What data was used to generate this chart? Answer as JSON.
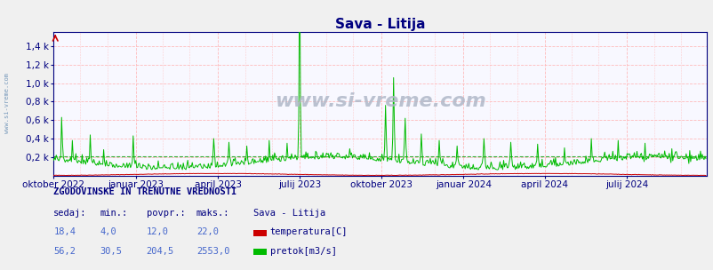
{
  "title": "Sava - Litija",
  "title_color": "#000080",
  "title_fontsize": 11,
  "background_color": "#f0f0f0",
  "plot_bg_color": "#f8f8ff",
  "watermark": "www.si-vreme.com",
  "watermark_color": "#bbbbbb",
  "grid_color": "#ffbbbb",
  "temp_color": "#cc0000",
  "flow_color": "#00bb00",
  "flow_avg_line_color": "#009900",
  "temp_avg_line_color": "#cc0000",
  "axis_color": "#000080",
  "tick_color": "#000080",
  "n_points": 730,
  "ylim": [
    0,
    1550
  ],
  "yticks": [
    200,
    400,
    600,
    800,
    1000,
    1200,
    1400
  ],
  "ytick_labels": [
    "0,2 k",
    "0,4 k",
    "0,6 k",
    "0,8 k",
    "1,0 k",
    "1,2 k",
    "1,4 k"
  ],
  "x_tick_positions": [
    0,
    92,
    184,
    275,
    366,
    458,
    549,
    641
  ],
  "x_tick_labels": [
    "oktober 2022",
    "januar 2023",
    "april 2023",
    "julij 2023",
    "oktober 2023",
    "januar 2024",
    "april 2024",
    "julij 2024"
  ],
  "stats_title": "ZGODOVINSKE IN TRENUTNE VREDNOSTI",
  "col_headers": [
    "sedaj:",
    "min.:",
    "povpr.:",
    "maks.:"
  ],
  "row1_values": [
    "18,4",
    "4,0",
    "12,0",
    "22,0"
  ],
  "row2_values": [
    "56,2",
    "30,5",
    "204,5",
    "2553,0"
  ],
  "station_name": "Sava - Litija",
  "legend_label1": "temperatura[C]",
  "legend_label2": "pretok[m3/s]",
  "legend_color1": "#cc0000",
  "legend_color2": "#00bb00",
  "flow_avg": 204.5,
  "flow_max": 2553.0,
  "temp_avg": 12.0,
  "temp_max": 22.0,
  "sidebar_text": "www.si-vreme.com",
  "sidebar_color": "#7799bb"
}
